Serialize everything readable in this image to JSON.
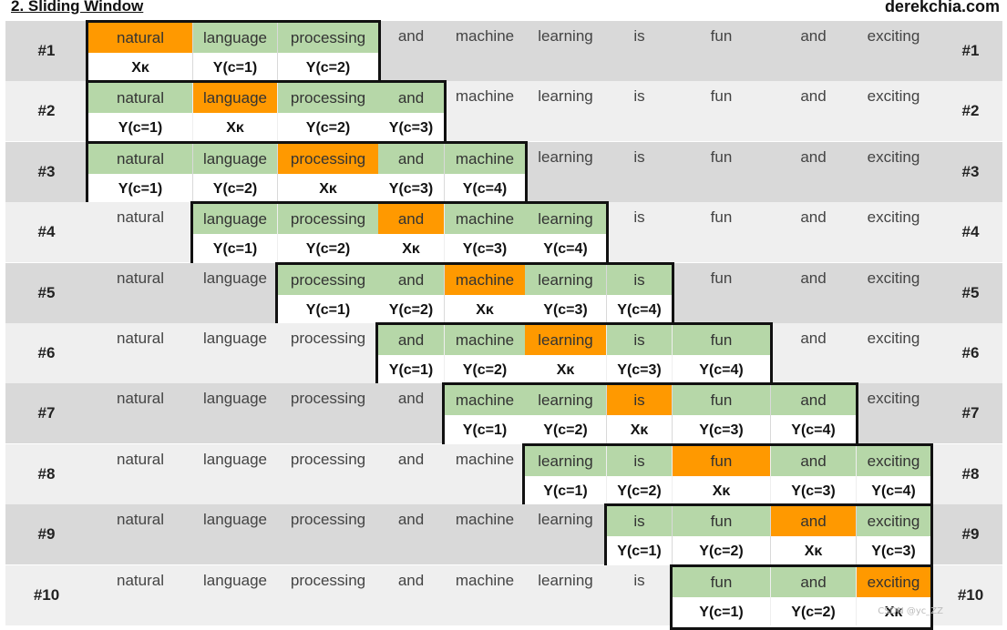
{
  "header": {
    "title": "2. Sliding Window",
    "site": "derekchia.com"
  },
  "colors": {
    "row_dark": "#d9d9d9",
    "row_light": "#efefef",
    "context": "#b6d7a8",
    "target": "#ff9900",
    "white": "#ffffff",
    "window_border": "#111111"
  },
  "words": [
    "natural",
    "language",
    "processing",
    "and",
    "machine",
    "learning",
    "is",
    "fun",
    "and",
    "exciting"
  ],
  "target_label": "Xκ",
  "rows": [
    {
      "label": "#1",
      "target": 0,
      "window": [
        0,
        2
      ],
      "ylabels": [
        "Xκ",
        "Y(c=1)",
        "Y(c=2)"
      ]
    },
    {
      "label": "#2",
      "target": 1,
      "window": [
        0,
        3
      ],
      "ylabels": [
        "Y(c=1)",
        "Xκ",
        "Y(c=2)",
        "Y(c=3)"
      ]
    },
    {
      "label": "#3",
      "target": 2,
      "window": [
        0,
        4
      ],
      "ylabels": [
        "Y(c=1)",
        "Y(c=2)",
        "Xκ",
        "Y(c=3)",
        "Y(c=4)"
      ]
    },
    {
      "label": "#4",
      "target": 3,
      "window": [
        1,
        5
      ],
      "ylabels": [
        "Y(c=1)",
        "Y(c=2)",
        "Xκ",
        "Y(c=3)",
        "Y(c=4)"
      ]
    },
    {
      "label": "#5",
      "target": 4,
      "window": [
        2,
        6
      ],
      "ylabels": [
        "Y(c=1)",
        "Y(c=2)",
        "Xκ",
        "Y(c=3)",
        "Y(c=4)"
      ]
    },
    {
      "label": "#6",
      "target": 5,
      "window": [
        3,
        7
      ],
      "ylabels": [
        "Y(c=1)",
        "Y(c=2)",
        "Xκ",
        "Y(c=3)",
        "Y(c=4)"
      ]
    },
    {
      "label": "#7",
      "target": 6,
      "window": [
        4,
        8
      ],
      "ylabels": [
        "Y(c=1)",
        "Y(c=2)",
        "Xκ",
        "Y(c=3)",
        "Y(c=4)"
      ]
    },
    {
      "label": "#8",
      "target": 7,
      "window": [
        5,
        9
      ],
      "ylabels": [
        "Y(c=1)",
        "Y(c=2)",
        "Xκ",
        "Y(c=3)",
        "Y(c=4)"
      ]
    },
    {
      "label": "#9",
      "target": 8,
      "window": [
        6,
        9
      ],
      "ylabels": [
        "Y(c=1)",
        "Y(c=2)",
        "Xκ",
        "Y(c=3)"
      ]
    },
    {
      "label": "#10",
      "target": 9,
      "window": [
        7,
        9
      ],
      "ylabels": [
        "Y(c=1)",
        "Y(c=2)",
        "Xκ"
      ]
    }
  ],
  "watermark": "CSDN @yc_ZZ"
}
